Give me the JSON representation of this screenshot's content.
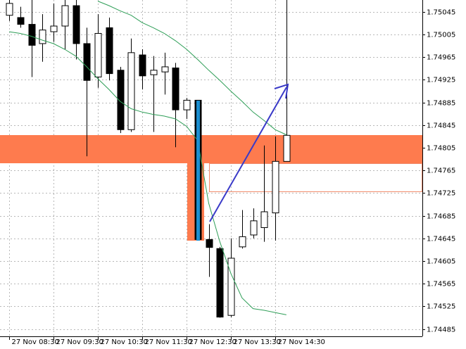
{
  "chart_data": {
    "type": "candlestick",
    "categories": [
      "27 Nov 08:30",
      null,
      null,
      null,
      "27 Nov 09:30",
      null,
      null,
      null,
      "27 Nov 10:30",
      null,
      null,
      null,
      "27 Nov 11:30",
      null,
      null,
      null,
      "27 Nov 12:30",
      null,
      null,
      null,
      "27 Nov 13:30",
      null,
      null,
      null,
      "27 Nov 14:30",
      null
    ],
    "open": [
      1.75039,
      1.75035,
      1.75023,
      1.74989,
      1.7501,
      1.7502,
      1.75056,
      1.74989,
      1.7493,
      1.75017,
      1.74942,
      1.74837,
      1.74969,
      1.74934,
      1.74939,
      1.74946,
      1.74872,
      1.74889,
      1.74643,
      1.74627,
      1.74509,
      1.7463,
      1.74651,
      1.74664,
      1.7469,
      1.74781
    ],
    "high": [
      1.75066,
      1.75054,
      1.75066,
      1.75041,
      1.7506,
      1.75066,
      1.75066,
      1.75017,
      1.75041,
      1.75035,
      1.74948,
      1.74998,
      1.74979,
      1.74967,
      1.74973,
      1.74955,
      1.74893,
      1.74889,
      1.7467,
      1.7463,
      1.74645,
      1.74695,
      1.74698,
      1.74809,
      1.74825,
      1.75066
    ],
    "low": [
      1.75029,
      1.75017,
      1.7493,
      1.74957,
      1.74992,
      1.74979,
      1.74961,
      1.7479,
      1.74911,
      1.74924,
      1.74831,
      1.74833,
      1.74908,
      1.74833,
      1.74899,
      1.74806,
      1.74856,
      1.74643,
      1.74577,
      1.74505,
      1.74506,
      1.74627,
      1.74645,
      1.74639,
      1.74641,
      1.74781
    ],
    "close": [
      1.7506,
      1.75023,
      1.74986,
      1.75013,
      1.7502,
      1.75056,
      1.74989,
      1.74924,
      1.75007,
      1.74936,
      1.74837,
      1.74973,
      1.74932,
      1.74942,
      1.74948,
      1.74872,
      1.74889,
      1.74643,
      1.74629,
      1.74506,
      1.7461,
      1.74648,
      1.74676,
      1.74692,
      1.74781,
      1.74827
    ],
    "ma": [
      [
        1.7501,
        1.75007,
        1.75002,
        1.74995,
        1.74989,
        1.74979,
        1.74967,
        1.74948,
        1.74927,
        1.74908,
        1.74887,
        1.74874,
        1.74868,
        1.74864,
        1.74861,
        1.74856,
        1.74843,
        1.74818,
        1.74707,
        1.74639,
        1.74583,
        1.7454,
        1.74521,
        1.74518,
        1.74514,
        1.7451
      ],
      [
        null,
        null,
        null,
        null,
        null,
        null,
        null,
        null,
        1.75064,
        1.75056,
        1.75047,
        1.75039,
        1.75026,
        1.75017,
        1.75007,
        1.74994,
        1.74979,
        1.74961,
        1.74942,
        1.74924,
        1.74905,
        1.74887,
        1.74868,
        1.74853,
        1.74837,
        1.74828
      ]
    ],
    "up_color": "#ffffff",
    "down_color": "#000000",
    "ma_color": "#2e9e57",
    "ylim": [
      1.74472,
      1.75066
    ],
    "yticks": [
      1.74485,
      1.74525,
      1.74565,
      1.74605,
      1.74645,
      1.74685,
      1.74725,
      1.74765,
      1.74805,
      1.74845,
      1.74885,
      1.74925,
      1.74965,
      1.75005,
      1.75045
    ],
    "grid": true
  }
}
